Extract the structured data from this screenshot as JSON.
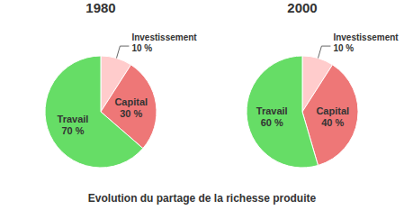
{
  "title": "Evolution du partage de la richesse produite",
  "chart_data": [
    {
      "type": "pie",
      "title": "1980",
      "categories": [
        "Investissement",
        "Capital",
        "Travail"
      ],
      "values": [
        10,
        30,
        70
      ],
      "value_labels": [
        "10 %",
        "30 %",
        "70 %"
      ],
      "colors": [
        "#FFCCCC",
        "#EE7777",
        "#66DD66"
      ],
      "data_labels": true
    },
    {
      "type": "pie",
      "title": "2000",
      "categories": [
        "Investissement",
        "Capital",
        "Travail"
      ],
      "values": [
        10,
        40,
        60
      ],
      "value_labels": [
        "10 %",
        "40 %",
        "60 %"
      ],
      "colors": [
        "#FFCCCC",
        "#EE7777",
        "#66DD66"
      ],
      "data_labels": true
    }
  ]
}
